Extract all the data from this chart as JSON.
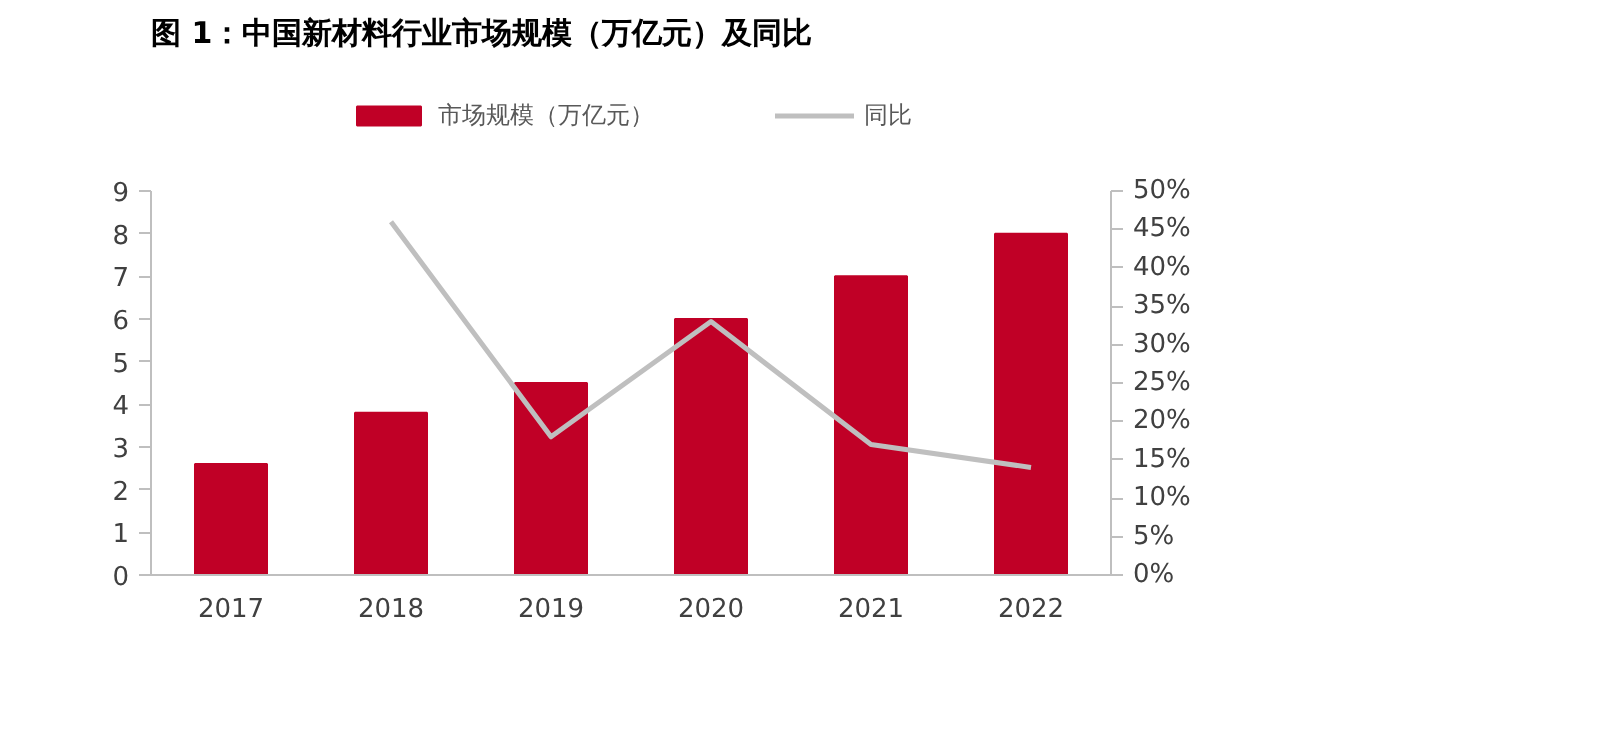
{
  "chart_data": {
    "type": "bar",
    "title": "图 1：中国新材料行业市场规模（万亿元）及同比",
    "categories": [
      "2017",
      "2018",
      "2019",
      "2020",
      "2021",
      "2022"
    ],
    "series": [
      {
        "name": "市场规模（万亿元）",
        "color": "#c00026",
        "values": [
          2.6,
          3.8,
          4.5,
          6.0,
          7.0,
          8.0
        ]
      },
      {
        "name": "同比",
        "type": "line",
        "axis": "y2",
        "color": "#bfbfbf",
        "values": [
          null,
          46,
          18,
          33,
          17,
          14
        ]
      }
    ],
    "ylim": [
      0,
      9
    ],
    "yticks": [
      0,
      1,
      2,
      3,
      4,
      5,
      6,
      7,
      8,
      9
    ],
    "y2lim": [
      0,
      50
    ],
    "y2ticks": [
      {
        "value": 0,
        "label": "0%"
      },
      {
        "value": 5,
        "label": "5%"
      },
      {
        "value": 10,
        "label": "10%"
      },
      {
        "value": 15,
        "label": "15%"
      },
      {
        "value": 20,
        "label": "20%"
      },
      {
        "value": 25,
        "label": "25%"
      },
      {
        "value": 30,
        "label": "30%"
      },
      {
        "value": 35,
        "label": "35%"
      },
      {
        "value": 40,
        "label": "40%"
      },
      {
        "value": 45,
        "label": "45%"
      },
      {
        "value": 50,
        "label": "50%"
      }
    ],
    "grid": false,
    "legend": "top",
    "line_style": "solid",
    "marker": "none"
  }
}
